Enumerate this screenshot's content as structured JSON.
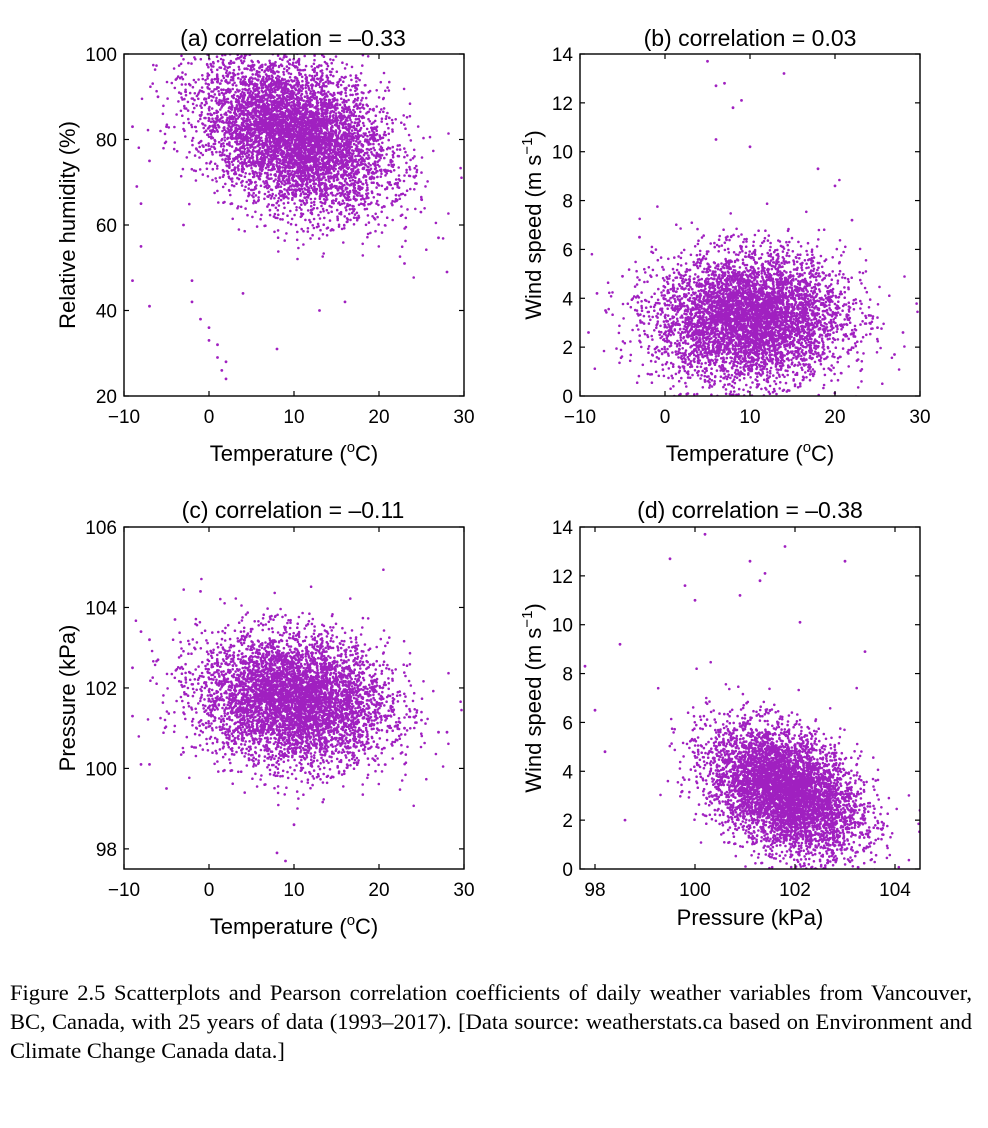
{
  "chart_data": [
    {
      "type": "scatter",
      "panel": "a",
      "title": "(a)  correlation = –0.33",
      "xlabel": "Temperature (",
      "xlabel_sup": "o",
      "xlabel_end": "C)",
      "ylabel": "Relative humidity (%)",
      "xlim": [
        -10,
        30
      ],
      "ylim": [
        20,
        100
      ],
      "xticks": [
        -10,
        0,
        10,
        20,
        30
      ],
      "xtick_labels": [
        "−10",
        "0",
        "10",
        "20",
        "30"
      ],
      "yticks": [
        20,
        40,
        60,
        80,
        100
      ],
      "ytick_labels": [
        "20",
        "40",
        "60",
        "80",
        "100"
      ],
      "color": "#a020c0",
      "correlation": -0.33,
      "cluster": {
        "x_center": 10,
        "x_spread": 5.5,
        "y_center": 81,
        "y_spread": 9,
        "n_points": 9000
      },
      "points": [
        [
          -9,
          83
        ],
        [
          -8.5,
          69
        ],
        [
          -8,
          65
        ],
        [
          -7,
          75
        ],
        [
          -6,
          90
        ],
        [
          -5,
          83
        ],
        [
          -3,
          60
        ],
        [
          -2,
          47
        ],
        [
          -1,
          38
        ],
        [
          0,
          36
        ],
        [
          0,
          33
        ],
        [
          1,
          32
        ],
        [
          1.5,
          26
        ],
        [
          2,
          24
        ],
        [
          4,
          44
        ],
        [
          5,
          70
        ],
        [
          8,
          31
        ],
        [
          13,
          40
        ],
        [
          16,
          42
        ],
        [
          22,
          67
        ],
        [
          23,
          51
        ],
        [
          25,
          66
        ],
        [
          27,
          57
        ],
        [
          28,
          49
        ],
        [
          -9,
          47
        ],
        [
          -7,
          41
        ],
        [
          -8,
          55
        ],
        [
          2,
          28
        ],
        [
          1,
          29
        ],
        [
          -2,
          42
        ]
      ]
    },
    {
      "type": "scatter",
      "panel": "b",
      "title": "(b)  correlation = 0.03",
      "xlabel": "Temperature (",
      "xlabel_sup": "o",
      "xlabel_end": "C)",
      "ylabel": "Wind speed (m s",
      "ylabel_sup": "−1",
      "ylabel_end": ")",
      "xlim": [
        -10,
        30
      ],
      "ylim": [
        0,
        14
      ],
      "xticks": [
        -10,
        0,
        10,
        20,
        30
      ],
      "xtick_labels": [
        "−10",
        "0",
        "10",
        "20",
        "30"
      ],
      "yticks": [
        0,
        2,
        4,
        6,
        8,
        10,
        12,
        14
      ],
      "ytick_labels": [
        "0",
        "2",
        "4",
        "6",
        "8",
        "10",
        "12",
        "14"
      ],
      "color": "#a020c0",
      "correlation": 0.03,
      "cluster": {
        "x_center": 10,
        "x_spread": 5.5,
        "y_center": 3.2,
        "y_spread": 1.3,
        "n_points": 9000
      },
      "points": [
        [
          5,
          13.7
        ],
        [
          14,
          13.2
        ],
        [
          7,
          12.8
        ],
        [
          6,
          12.7
        ],
        [
          9,
          12.1
        ],
        [
          8,
          11.8
        ],
        [
          6,
          10.5
        ],
        [
          10,
          10.2
        ],
        [
          -8,
          4.2
        ],
        [
          -9,
          2.6
        ],
        [
          -7,
          3.5
        ],
        [
          -5,
          4.9
        ],
        [
          25,
          2.8
        ],
        [
          27,
          1.7
        ],
        [
          28,
          2.6
        ],
        [
          24,
          3.3
        ],
        [
          20,
          8.6
        ],
        [
          18,
          9.3
        ],
        [
          22,
          7.2
        ],
        [
          -3,
          6.5
        ]
      ]
    },
    {
      "type": "scatter",
      "panel": "c",
      "title": "(c)  correlation = –0.11",
      "xlabel": "Temperature (",
      "xlabel_sup": "o",
      "xlabel_end": "C)",
      "ylabel": "Pressure (kPa)",
      "xlim": [
        -10,
        30
      ],
      "ylim": [
        97.5,
        106
      ],
      "xticks": [
        -10,
        0,
        10,
        20,
        30
      ],
      "xtick_labels": [
        "−10",
        "0",
        "10",
        "20",
        "30"
      ],
      "yticks": [
        98,
        100,
        102,
        104,
        106
      ],
      "ytick_labels": [
        "98",
        "100",
        "102",
        "104",
        "106"
      ],
      "color": "#a020c0",
      "correlation": -0.11,
      "cluster": {
        "x_center": 10,
        "x_spread": 5.5,
        "y_center": 101.7,
        "y_spread": 0.8,
        "n_points": 9000
      },
      "points": [
        [
          -9,
          102.5
        ],
        [
          -8,
          103.4
        ],
        [
          -7,
          103.2
        ],
        [
          -6,
          102.7
        ],
        [
          -5,
          99.5
        ],
        [
          -7,
          100.1
        ],
        [
          -8,
          100.1
        ],
        [
          -9,
          101.3
        ],
        [
          -1,
          104.4
        ],
        [
          8,
          97.9
        ],
        [
          9,
          97.7
        ],
        [
          10,
          98.6
        ],
        [
          25,
          101.2
        ],
        [
          27,
          100.9
        ],
        [
          28,
          100.9
        ],
        [
          23,
          101
        ],
        [
          -4,
          103.7
        ],
        [
          -3,
          100.4
        ]
      ]
    },
    {
      "type": "scatter",
      "panel": "d",
      "title": "(d)  correlation = –0.38",
      "xlabel": "Pressure (kPa)",
      "ylabel": "Wind speed (m s",
      "ylabel_sup": "−1",
      "ylabel_end": ")",
      "xlim": [
        97.7,
        104.5
      ],
      "ylim": [
        0,
        14
      ],
      "xticks": [
        98,
        100,
        102,
        104
      ],
      "xtick_labels": [
        "98",
        "100",
        "102",
        "104"
      ],
      "yticks": [
        0,
        2,
        4,
        6,
        8,
        10,
        12,
        14
      ],
      "ytick_labels": [
        "0",
        "2",
        "4",
        "6",
        "8",
        "10",
        "12",
        "14"
      ],
      "color": "#a020c0",
      "correlation": -0.38,
      "cluster": {
        "x_center": 101.8,
        "x_spread": 0.75,
        "y_center": 3.2,
        "y_spread": 1.3,
        "n_points": 9000
      },
      "points": [
        [
          100.2,
          13.7
        ],
        [
          101.8,
          13.2
        ],
        [
          99.5,
          12.7
        ],
        [
          101.1,
          12.6
        ],
        [
          103,
          12.6
        ],
        [
          101.4,
          12.1
        ],
        [
          99.8,
          11.6
        ],
        [
          101.3,
          11.8
        ],
        [
          100,
          11
        ],
        [
          98.6,
          2
        ],
        [
          97.8,
          8.3
        ],
        [
          98,
          6.5
        ],
        [
          98.2,
          4.8
        ],
        [
          104.5,
          2.4
        ],
        [
          103.4,
          8.9
        ],
        [
          100.9,
          11.2
        ],
        [
          102.1,
          10.1
        ],
        [
          98.5,
          9.2
        ]
      ]
    }
  ],
  "caption": "Figure 2.5 Scatterplots and Pearson correlation coefficients of daily weather variables from Vancouver, BC, Canada, with 25 years of data (1993–2017). [Data source:  weatherstats.ca based on Environment and Climate Change Canada data.]"
}
